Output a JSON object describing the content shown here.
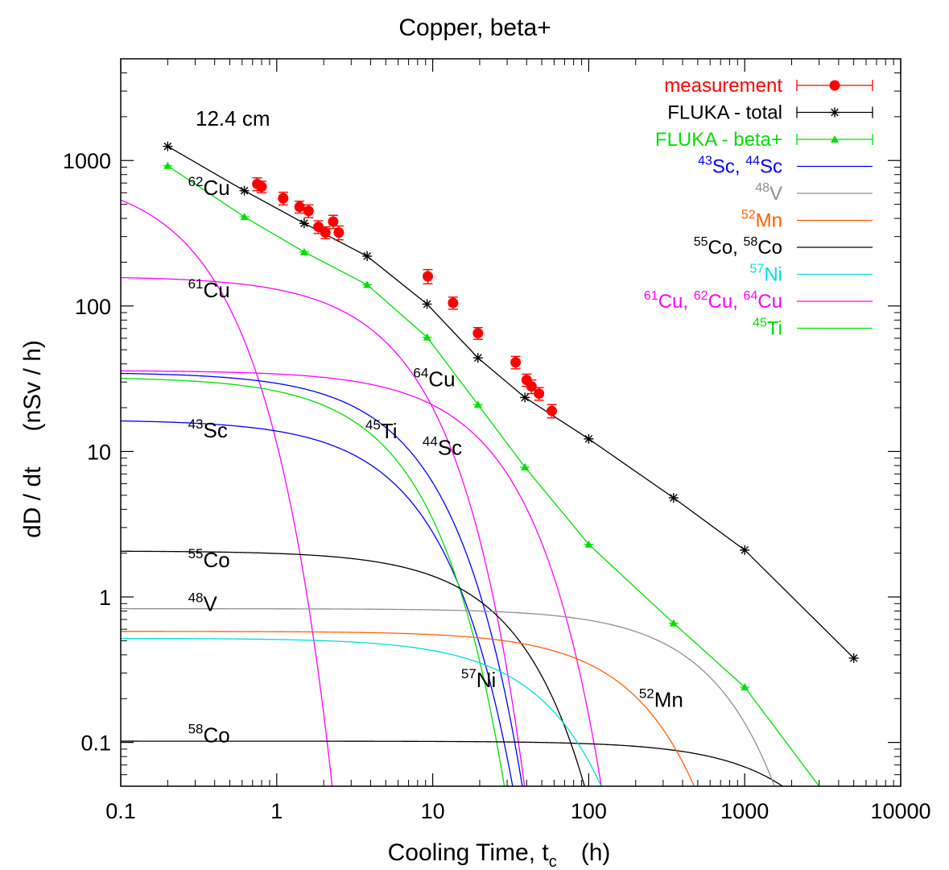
{
  "chart_data": {
    "type": "line",
    "title": "Copper, beta+",
    "xlabel": "Cooling Time, t_c      (h)",
    "xlabel_parts": {
      "pre": "Cooling Time, t",
      "sub": "c",
      "post": "(h)"
    },
    "ylabel": "dD / dt      (nSv / h)",
    "ylabel_parts": {
      "left": "dD / dt",
      "right": "(nSv / h)"
    },
    "xscale": "log",
    "yscale": "log",
    "xlim": [
      0.1,
      10000
    ],
    "ylim": [
      0.05,
      5000
    ],
    "grid": false,
    "legend_position": "top-right",
    "depth_annotation": "12.4 cm",
    "x_ticks": [
      {
        "value": 0.1,
        "label": "0.1"
      },
      {
        "value": 1,
        "label": "1"
      },
      {
        "value": 10,
        "label": "10"
      },
      {
        "value": 100,
        "label": "100"
      },
      {
        "value": 1000,
        "label": "1000"
      },
      {
        "value": 10000,
        "label": "10000"
      }
    ],
    "y_ticks": [
      {
        "value": 0.1,
        "label": "0.1"
      },
      {
        "value": 1,
        "label": "1"
      },
      {
        "value": 10,
        "label": "10"
      },
      {
        "value": 100,
        "label": "100"
      },
      {
        "value": 1000,
        "label": "1000"
      }
    ],
    "measurement": {
      "name": "measurement",
      "color": "#ff0000",
      "points": [
        {
          "x": 0.75,
          "y": 690,
          "err": 70
        },
        {
          "x": 0.8,
          "y": 660,
          "err": 60
        },
        {
          "x": 1.1,
          "y": 550,
          "err": 55
        },
        {
          "x": 1.4,
          "y": 480,
          "err": 45
        },
        {
          "x": 1.6,
          "y": 450,
          "err": 45
        },
        {
          "x": 1.85,
          "y": 350,
          "err": 35
        },
        {
          "x": 2.05,
          "y": 320,
          "err": 30
        },
        {
          "x": 2.3,
          "y": 380,
          "err": 40
        },
        {
          "x": 2.5,
          "y": 320,
          "err": 35
        },
        {
          "x": 9.3,
          "y": 160,
          "err": 18
        },
        {
          "x": 13.5,
          "y": 105,
          "err": 10
        },
        {
          "x": 19.5,
          "y": 65,
          "err": 6
        },
        {
          "x": 34,
          "y": 41,
          "err": 4
        },
        {
          "x": 40,
          "y": 31,
          "err": 3
        },
        {
          "x": 43,
          "y": 28,
          "err": 3
        },
        {
          "x": 48,
          "y": 25,
          "err": 2.5
        },
        {
          "x": 58,
          "y": 19,
          "err": 2
        }
      ]
    },
    "fluka_total": {
      "name": "FLUKA - total",
      "color": "#000000",
      "points": [
        [
          0.2,
          1250
        ],
        [
          0.62,
          620
        ],
        [
          1.5,
          370
        ],
        [
          3.8,
          220
        ],
        [
          9.2,
          103
        ],
        [
          19.5,
          44
        ],
        [
          39,
          23.5
        ],
        [
          100,
          12.2
        ],
        [
          350,
          4.8
        ],
        [
          1000,
          2.1
        ],
        [
          5000,
          0.38
        ]
      ]
    },
    "fluka_beta": {
      "name": "FLUKA - beta+",
      "color": "#00e000",
      "points": [
        [
          0.2,
          920
        ],
        [
          0.62,
          410
        ],
        [
          1.5,
          235
        ],
        [
          3.8,
          140
        ],
        [
          9.2,
          61
        ],
        [
          19.5,
          21
        ],
        [
          39,
          7.8
        ],
        [
          100,
          2.3
        ],
        [
          350,
          0.66
        ],
        [
          1000,
          0.24
        ],
        [
          3000,
          0.05
        ]
      ]
    },
    "isotopes": [
      {
        "name": "61Cu",
        "group": "Cu",
        "A0": 160,
        "half_life_h": 3.33
      },
      {
        "name": "62Cu",
        "group": "Cu",
        "A0": 820,
        "half_life_h": 0.162
      },
      {
        "name": "64Cu",
        "group": "Cu",
        "A0": 36,
        "half_life_h": 12.7
      },
      {
        "name": "43Sc",
        "group": "Sc",
        "A0": 16.5,
        "half_life_h": 3.89
      },
      {
        "name": "44Sc",
        "group": "Sc",
        "A0": 35,
        "half_life_h": 3.97
      },
      {
        "name": "45Ti",
        "group": "Ti",
        "A0": 32.5,
        "half_life_h": 3.08
      },
      {
        "name": "55Co",
        "group": "Co",
        "A0": 2.07,
        "half_life_h": 17.5
      },
      {
        "name": "58Co",
        "group": "Co",
        "A0": 0.102,
        "half_life_h": 1700
      },
      {
        "name": "48V",
        "group": "V",
        "A0": 0.83,
        "half_life_h": 383
      },
      {
        "name": "52Mn",
        "group": "Mn",
        "A0": 0.58,
        "half_life_h": 134
      },
      {
        "name": "57Ni",
        "group": "Ni",
        "A0": 0.52,
        "half_life_h": 35.6
      }
    ],
    "colors": {
      "Cu": "#ff00ff",
      "Sc": "#0000ff",
      "Ti": "#00e000",
      "Co": "#000000",
      "V": "#8f8f8f",
      "Mn": "#ff6000",
      "Ni": "#00dddd"
    },
    "curve_labels": [
      {
        "mass": "62",
        "symbol": "Cu",
        "x": 0.27,
        "y": 580
      },
      {
        "mass": "61",
        "symbol": "Cu",
        "x": 0.27,
        "y": 115
      },
      {
        "mass": "64",
        "symbol": "Cu",
        "x": 7.5,
        "y": 28
      },
      {
        "mass": "43",
        "symbol": "Sc",
        "x": 0.27,
        "y": 12.5
      },
      {
        "mass": "45",
        "symbol": "Ti",
        "x": 3.7,
        "y": 12.3
      },
      {
        "mass": "44",
        "symbol": "Sc",
        "x": 8.6,
        "y": 9.5
      },
      {
        "mass": "55",
        "symbol": "Co",
        "x": 0.27,
        "y": 1.6
      },
      {
        "mass": "48",
        "symbol": "V",
        "x": 0.27,
        "y": 0.8
      },
      {
        "mass": "57",
        "symbol": "Ni",
        "x": 15.2,
        "y": 0.24
      },
      {
        "mass": "52",
        "symbol": "Mn",
        "x": 210,
        "y": 0.175
      },
      {
        "mass": "58",
        "symbol": "Co",
        "x": 0.27,
        "y": 0.1
      }
    ],
    "legend": [
      {
        "kind": "measurement",
        "color": "#ff0000",
        "parts": [
          [
            "",
            "measurement"
          ]
        ]
      },
      {
        "kind": "total",
        "color": "#000000",
        "parts": [
          [
            "",
            "FLUKA - total"
          ]
        ]
      },
      {
        "kind": "beta",
        "color": "#00e000",
        "parts": [
          [
            "",
            "FLUKA - beta+"
          ]
        ]
      },
      {
        "kind": "line",
        "color": "#0000ff",
        "parts": [
          [
            "43",
            "Sc, "
          ],
          [
            "44",
            "Sc"
          ]
        ]
      },
      {
        "kind": "line",
        "color": "#8f8f8f",
        "parts": [
          [
            "48",
            "V"
          ]
        ]
      },
      {
        "kind": "line",
        "color": "#ff6000",
        "parts": [
          [
            "52",
            "Mn"
          ]
        ]
      },
      {
        "kind": "line",
        "color": "#000000",
        "parts": [
          [
            "55",
            "Co, "
          ],
          [
            "58",
            "Co"
          ]
        ]
      },
      {
        "kind": "line",
        "color": "#00dddd",
        "parts": [
          [
            "57",
            "Ni"
          ]
        ]
      },
      {
        "kind": "line",
        "color": "#ff00ff",
        "parts": [
          [
            "61",
            "Cu, "
          ],
          [
            "62",
            "Cu, "
          ],
          [
            "64",
            "Cu"
          ]
        ]
      },
      {
        "kind": "line",
        "color": "#00e000",
        "parts": [
          [
            "45",
            "Ti"
          ]
        ]
      }
    ]
  }
}
